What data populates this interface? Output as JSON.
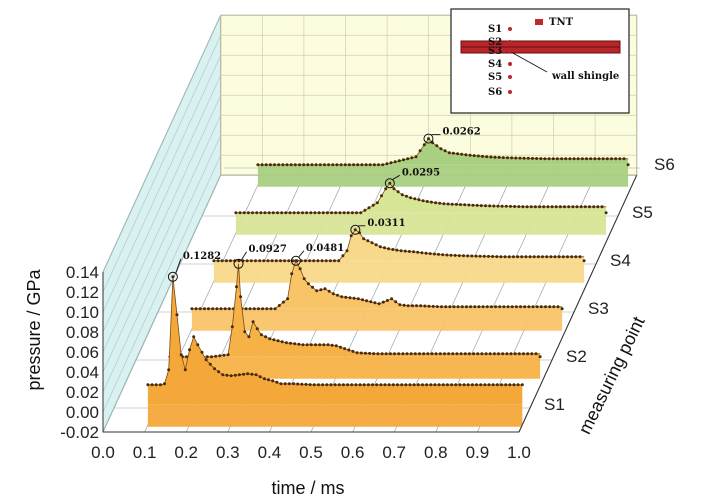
{
  "chart_data": {
    "type": "area",
    "xlabel": "time / ms",
    "ylabel": "pressure / GPa",
    "zlabel": "measuring point",
    "x_ticks": [
      "0.0",
      "0.1",
      "0.2",
      "0.3",
      "0.4",
      "0.5",
      "0.6",
      "0.7",
      "0.8",
      "0.9",
      "1.0"
    ],
    "y_ticks": [
      "-0.02",
      "0.00",
      "0.02",
      "0.04",
      "0.06",
      "0.08",
      "0.10",
      "0.12",
      "0.14"
    ],
    "xlim": [
      0,
      1.0
    ],
    "ylim": [
      -0.02,
      0.14
    ],
    "categories": [
      "S1",
      "S2",
      "S3",
      "S4",
      "S5",
      "S6"
    ],
    "series": [
      {
        "name": "S1",
        "color": "#f5a83a",
        "peak": 0.1282,
        "x": [
          0.1,
          0.13,
          0.14,
          0.15,
          0.155,
          0.16,
          0.17,
          0.18,
          0.19,
          0.2,
          0.21,
          0.22,
          0.24,
          0.26,
          0.28,
          0.3,
          0.32,
          0.34,
          0.36,
          0.38,
          0.4,
          0.42,
          0.45,
          0.5,
          0.6,
          0.7,
          0.8,
          0.9,
          0.99,
          1.0
        ],
        "y": [
          0.02,
          0.02,
          0.021,
          0.035,
          0.08,
          0.128,
          0.09,
          0.05,
          0.035,
          0.055,
          0.068,
          0.06,
          0.045,
          0.036,
          0.03,
          0.029,
          0.03,
          0.031,
          0.03,
          0.026,
          0.024,
          0.021,
          0.021,
          0.02,
          0.02,
          0.02,
          0.02,
          0.02,
          0.02,
          0.02
        ]
      },
      {
        "name": "S2",
        "color": "#f7b247",
        "peak": 0.0927,
        "x": [
          0.1,
          0.2,
          0.24,
          0.25,
          0.26,
          0.265,
          0.27,
          0.28,
          0.29,
          0.3,
          0.31,
          0.32,
          0.34,
          0.36,
          0.38,
          0.4,
          0.42,
          0.45,
          0.48,
          0.5,
          0.55,
          0.6,
          0.7,
          0.8,
          0.9,
          0.99
        ],
        "y": [
          0.0,
          0.0,
          0.002,
          0.03,
          0.07,
          0.093,
          0.06,
          0.025,
          0.02,
          0.035,
          0.028,
          0.022,
          0.018,
          0.016,
          0.014,
          0.013,
          0.012,
          0.012,
          0.012,
          0.011,
          0.004,
          0.003,
          0.003,
          0.003,
          0.003,
          0.003
        ]
      },
      {
        "name": "S3",
        "color": "#f8c467",
        "peak": 0.0481,
        "x": [
          0.1,
          0.3,
          0.33,
          0.34,
          0.35,
          0.36,
          0.37,
          0.38,
          0.4,
          0.42,
          0.44,
          0.46,
          0.48,
          0.5,
          0.52,
          0.55,
          0.58,
          0.6,
          0.62,
          0.65,
          0.7,
          0.8,
          0.9,
          0.99
        ],
        "y": [
          0.0,
          0.0,
          0.01,
          0.035,
          0.048,
          0.04,
          0.03,
          0.025,
          0.018,
          0.02,
          0.015,
          0.012,
          0.011,
          0.01,
          0.008,
          0.005,
          0.01,
          0.004,
          0.003,
          0.003,
          0.002,
          0.002,
          0.002,
          0.002
        ]
      },
      {
        "name": "S4",
        "color": "#f8d88a",
        "peak": 0.0311,
        "x": [
          0.1,
          0.4,
          0.42,
          0.43,
          0.44,
          0.45,
          0.46,
          0.48,
          0.5,
          0.52,
          0.55,
          0.58,
          0.6,
          0.65,
          0.7,
          0.8,
          0.9,
          0.99
        ],
        "y": [
          0.0,
          0.0,
          0.01,
          0.025,
          0.031,
          0.028,
          0.022,
          0.018,
          0.014,
          0.012,
          0.01,
          0.009,
          0.008,
          0.006,
          0.005,
          0.004,
          0.004,
          0.004
        ]
      },
      {
        "name": "S5",
        "color": "#d7e597",
        "peak": 0.0295,
        "x": [
          0.1,
          0.4,
          0.44,
          0.46,
          0.47,
          0.48,
          0.5,
          0.52,
          0.55,
          0.58,
          0.6,
          0.65,
          0.7,
          0.8,
          0.9,
          0.99
        ],
        "y": [
          0.0,
          0.0,
          0.01,
          0.024,
          0.0295,
          0.024,
          0.018,
          0.015,
          0.012,
          0.01,
          0.009,
          0.008,
          0.007,
          0.006,
          0.006,
          0.006
        ]
      },
      {
        "name": "S6",
        "color": "#a9d081",
        "peak": 0.0262,
        "x": [
          0.1,
          0.4,
          0.48,
          0.5,
          0.51,
          0.52,
          0.54,
          0.56,
          0.6,
          0.65,
          0.7,
          0.8,
          0.9,
          0.99
        ],
        "y": [
          0.0,
          0.0,
          0.008,
          0.02,
          0.0262,
          0.022,
          0.016,
          0.012,
          0.01,
          0.008,
          0.007,
          0.006,
          0.006,
          0.006
        ]
      }
    ],
    "annotations": [
      "0.1282",
      "0.0927",
      "0.0481",
      "0.0311",
      "0.0295",
      "0.0262"
    ],
    "inset": {
      "points": [
        "S1",
        "S2",
        "S3",
        "S4",
        "S5",
        "S6"
      ],
      "legend": "TNT",
      "label": "wall shingle",
      "tnt_color": "#c0282a"
    },
    "grid": true,
    "colors": {
      "left_wall": "#d9f1f1",
      "back_wall": "#fcfcde",
      "floor": "#ffffff",
      "grid": "#9aa7a7"
    }
  }
}
